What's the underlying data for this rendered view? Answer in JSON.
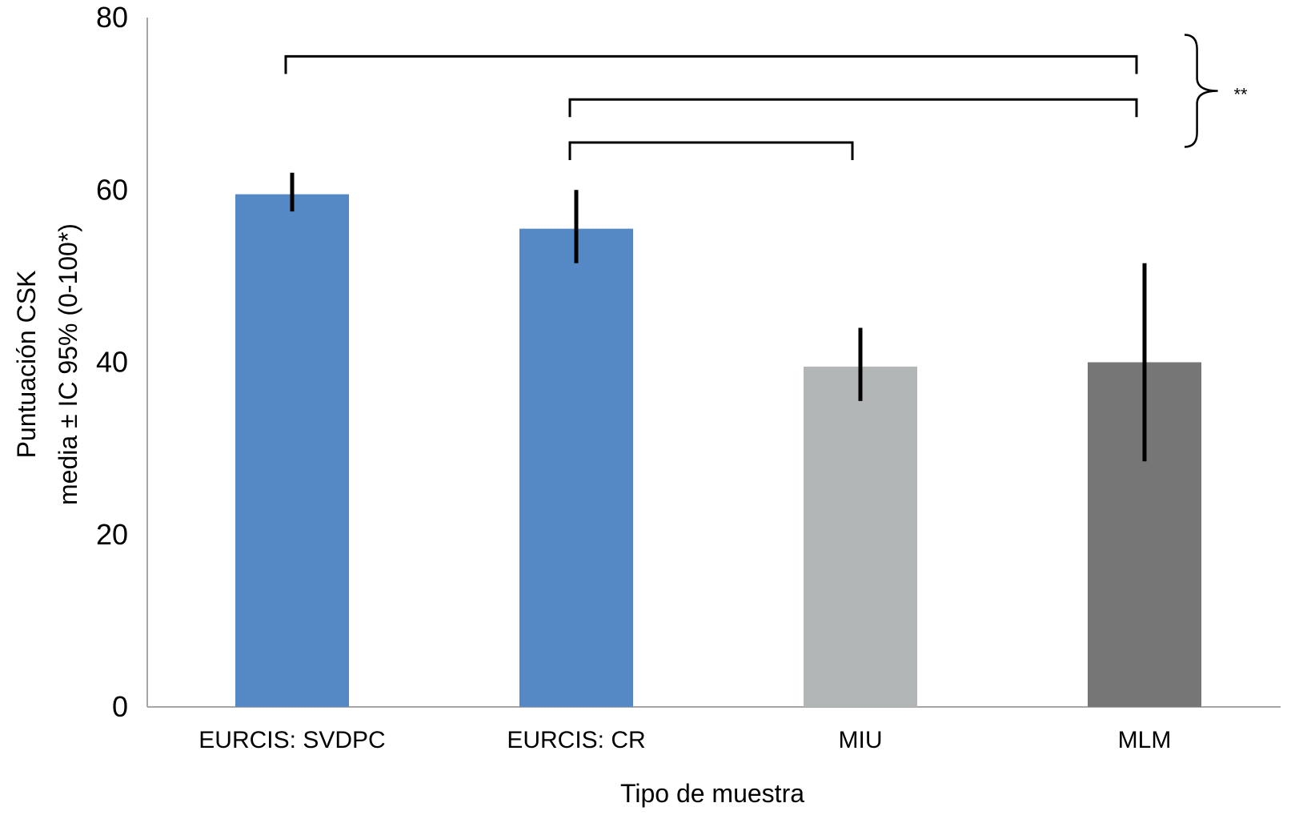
{
  "chart_data": {
    "type": "bar",
    "title": "",
    "xlabel": "Tipo de muestra",
    "ylabel_lines": [
      "Puntuación CSK",
      "media ± IC 95% (0-100*)"
    ],
    "ylim": [
      0,
      80
    ],
    "yticks": [
      "0",
      "20",
      "40",
      "60",
      "80"
    ],
    "ytick_values": [
      0,
      20,
      40,
      60,
      80
    ],
    "categories": [
      "EURCIS: SVDPC",
      "EURCIS: CR",
      "MIU",
      "MLM"
    ],
    "values": [
      59.5,
      55.5,
      39.5,
      40
    ],
    "ci_lower": [
      57.5,
      51.5,
      35.5,
      28.5
    ],
    "ci_upper": [
      62,
      60,
      44,
      51.5
    ],
    "bar_colors": [
      "#5589c6",
      "#5589c6",
      "#b3b6b6",
      "#767676"
    ],
    "grid": false,
    "significance": {
      "brackets": [
        {
          "from": "EURCIS: SVDPC",
          "to": "MLM",
          "level": 75.5
        },
        {
          "from": "EURCIS: CR",
          "to": "MLM",
          "level": 70.5
        },
        {
          "from": "EURCIS: CR",
          "to": "MIU",
          "level": 65.5
        }
      ],
      "brace_range": [
        65,
        78
      ],
      "label": "**"
    }
  }
}
